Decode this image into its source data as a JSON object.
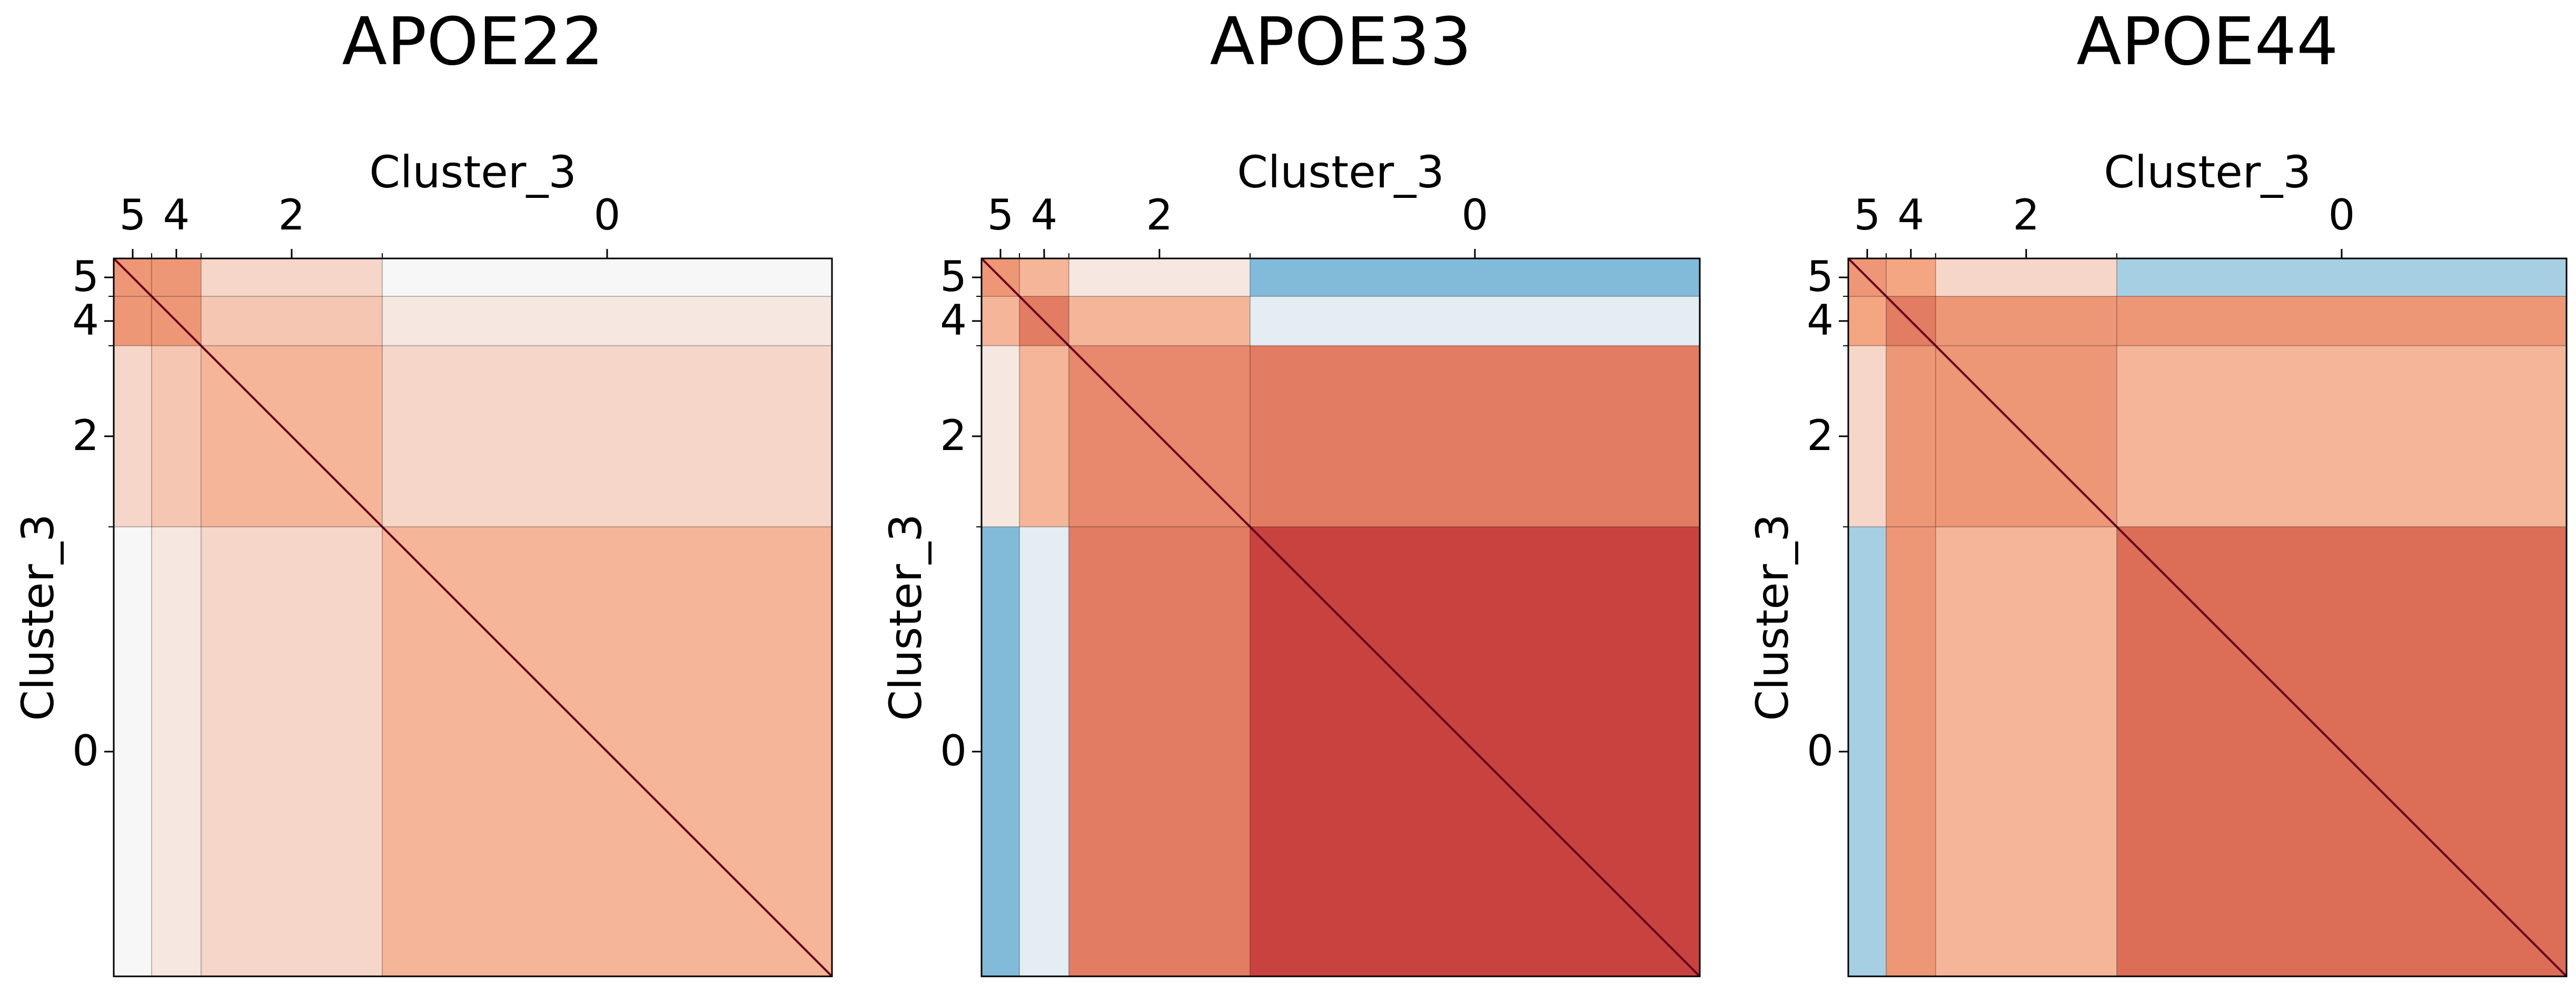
{
  "chart_data": [
    {
      "type": "heatmap",
      "title": "APOE22",
      "xlabel": "Cluster_3",
      "ylabel": "Cluster_3",
      "categories": [
        "5",
        "4",
        "2",
        "0"
      ],
      "sizes": [
        23,
        30,
        110,
        273
      ],
      "values": [
        [
          0.3,
          0.3,
          0.1,
          0.0
        ],
        [
          0.3,
          0.3,
          0.15,
          0.05
        ],
        [
          0.1,
          0.15,
          0.2,
          0.1
        ],
        [
          0.0,
          0.05,
          0.1,
          0.2
        ]
      ],
      "diagonal": 1,
      "colormap": "RdBu_r",
      "vlim": [
        -1,
        1
      ]
    },
    {
      "type": "heatmap",
      "title": "APOE33",
      "xlabel": "Cluster_3",
      "ylabel": "Cluster_3",
      "categories": [
        "5",
        "4",
        "2",
        "0"
      ],
      "sizes": [
        23,
        30,
        110,
        273
      ],
      "values": [
        [
          0.3,
          0.2,
          0.05,
          -0.3
        ],
        [
          0.2,
          0.4,
          0.2,
          -0.05
        ],
        [
          0.05,
          0.2,
          0.35,
          0.4
        ],
        [
          -0.3,
          -0.05,
          0.4,
          0.6
        ]
      ],
      "diagonal": 1,
      "colormap": "RdBu_r",
      "vlim": [
        -1,
        1
      ]
    },
    {
      "type": "heatmap",
      "title": "APOE44",
      "xlabel": "Cluster_3",
      "ylabel": "Cluster_3",
      "categories": [
        "5",
        "4",
        "2",
        "0"
      ],
      "sizes": [
        23,
        30,
        110,
        273
      ],
      "values": [
        [
          0.3,
          0.25,
          0.1,
          -0.2
        ],
        [
          0.25,
          0.4,
          0.3,
          0.3
        ],
        [
          0.1,
          0.3,
          0.3,
          0.2
        ],
        [
          -0.2,
          0.3,
          0.2,
          0.45
        ]
      ],
      "diagonal": 1,
      "colormap": "RdBu_r",
      "vlim": [
        -1,
        1
      ]
    }
  ]
}
